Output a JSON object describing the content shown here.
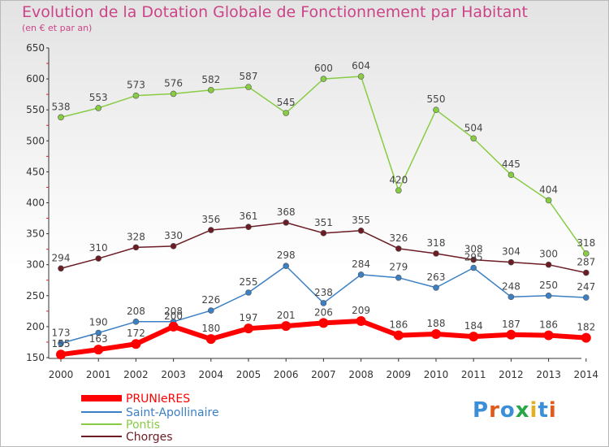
{
  "title": "Evolution de la Dotation Globale de Fonctionnement par Habitant",
  "subtitle": "(en € et par an)",
  "logo": "Proxiti",
  "chart_data": {
    "type": "line",
    "x": [
      "2000",
      "2001",
      "2002",
      "2003",
      "2004",
      "2005",
      "2006",
      "2007",
      "2008",
      "2009",
      "2010",
      "2011",
      "2012",
      "2013",
      "2014"
    ],
    "ylim": [
      150,
      650
    ],
    "yticks": [
      "150",
      "200",
      "250",
      "300",
      "350",
      "400",
      "450",
      "500",
      "550",
      "600",
      "650"
    ],
    "grid": false,
    "legend_position": "bottom-left",
    "series": [
      {
        "name": "PRUNIeRES",
        "color": "#ff0000",
        "labels": [
          "155",
          "163",
          "172",
          "200",
          "180",
          "197",
          "201",
          "206",
          "209",
          "186",
          "188",
          "184",
          "187",
          "186",
          "182"
        ],
        "values": [
          155,
          163,
          172,
          200,
          180,
          197,
          201,
          206,
          209,
          186,
          188,
          184,
          187,
          186,
          182
        ]
      },
      {
        "name": "Saint-Apollinaire",
        "color": "#3b7fc4",
        "labels": [
          "173",
          "190",
          "208",
          "208",
          "226",
          "255",
          "298",
          "238",
          "284",
          "279",
          "263",
          "295",
          "248",
          "250",
          "247"
        ],
        "values": [
          173,
          190,
          208,
          208,
          226,
          255,
          298,
          238,
          284,
          279,
          263,
          295,
          248,
          250,
          247
        ]
      },
      {
        "name": "Pontis",
        "color": "#88cc44",
        "labels": [
          "538",
          "553",
          "573",
          "576",
          "582",
          "587",
          "545",
          "600",
          "604",
          "420",
          "550",
          "504",
          "445",
          "404",
          "318"
        ],
        "values": [
          538,
          553,
          573,
          576,
          582,
          587,
          545,
          600,
          604,
          420,
          550,
          504,
          445,
          404,
          318
        ]
      },
      {
        "name": "Chorges",
        "color": "#6b1c24",
        "labels": [
          "294",
          "310",
          "328",
          "330",
          "356",
          "361",
          "368",
          "351",
          "355",
          "326",
          "318",
          "308",
          "304",
          "300",
          "287"
        ],
        "values": [
          294,
          310,
          328,
          330,
          356,
          361,
          368,
          351,
          355,
          326,
          318,
          308,
          304,
          300,
          287
        ]
      }
    ]
  }
}
